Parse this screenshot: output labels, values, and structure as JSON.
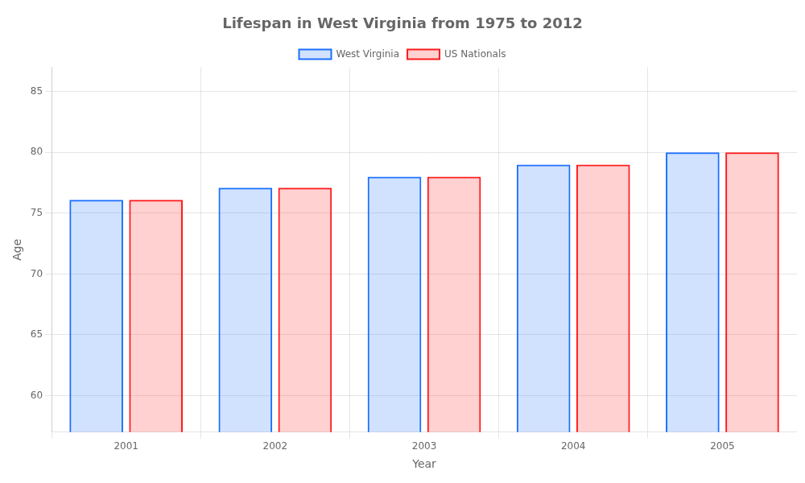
{
  "chart_data": {
    "type": "bar",
    "title": "Lifespan in West Virginia from 1975 to 2012",
    "x_label": "Year",
    "y_label": "Age",
    "categories": [
      "2001",
      "2002",
      "2003",
      "2004",
      "2005"
    ],
    "series": [
      {
        "name": "West Virginia",
        "color": "#1a6fff",
        "values": [
          76.1,
          77.1,
          78.0,
          79.0,
          80.0
        ]
      },
      {
        "name": "US Nationals",
        "color": "#ff1a1a",
        "values": [
          76.1,
          77.1,
          78.0,
          79.0,
          80.0
        ]
      }
    ],
    "ylim": [
      57,
      87
    ],
    "yticks": [
      60,
      65,
      70,
      75,
      80,
      85
    ],
    "grid": true,
    "legend": "top"
  }
}
